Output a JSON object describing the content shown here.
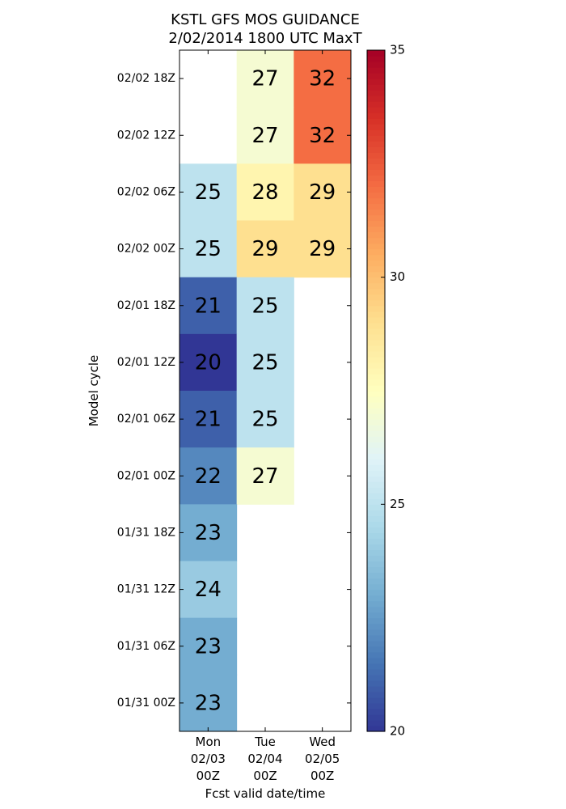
{
  "chart_data": {
    "type": "heatmap",
    "title_lines": [
      "KSTL GFS MOS GUIDANCE",
      "2/02/2014 1800 UTC MaxT"
    ],
    "xlabel": "Fcst valid date/time",
    "ylabel": "Model cycle",
    "columns": [
      [
        "Mon",
        "02/03",
        "00Z"
      ],
      [
        "Tue",
        "02/04",
        "00Z"
      ],
      [
        "Wed",
        "02/05",
        "00Z"
      ]
    ],
    "rows": [
      "02/02 18Z",
      "02/02 12Z",
      "02/02 06Z",
      "02/02 00Z",
      "02/01 18Z",
      "02/01 12Z",
      "02/01 06Z",
      "02/01 00Z",
      "01/31 18Z",
      "01/31 12Z",
      "01/31 06Z",
      "01/31 00Z"
    ],
    "values": [
      [
        null,
        27,
        32
      ],
      [
        null,
        27,
        32
      ],
      [
        25,
        28,
        29
      ],
      [
        25,
        29,
        29
      ],
      [
        21,
        25,
        null
      ],
      [
        20,
        25,
        null
      ],
      [
        21,
        25,
        null
      ],
      [
        22,
        27,
        null
      ],
      [
        23,
        null,
        null
      ],
      [
        24,
        null,
        null
      ],
      [
        23,
        null,
        null
      ],
      [
        23,
        null,
        null
      ]
    ],
    "colorbar": {
      "min": 20,
      "max": 35,
      "ticks": [
        "20",
        "25",
        "30",
        "35"
      ],
      "colormap": "RdYlBu_r"
    },
    "grid": false
  }
}
